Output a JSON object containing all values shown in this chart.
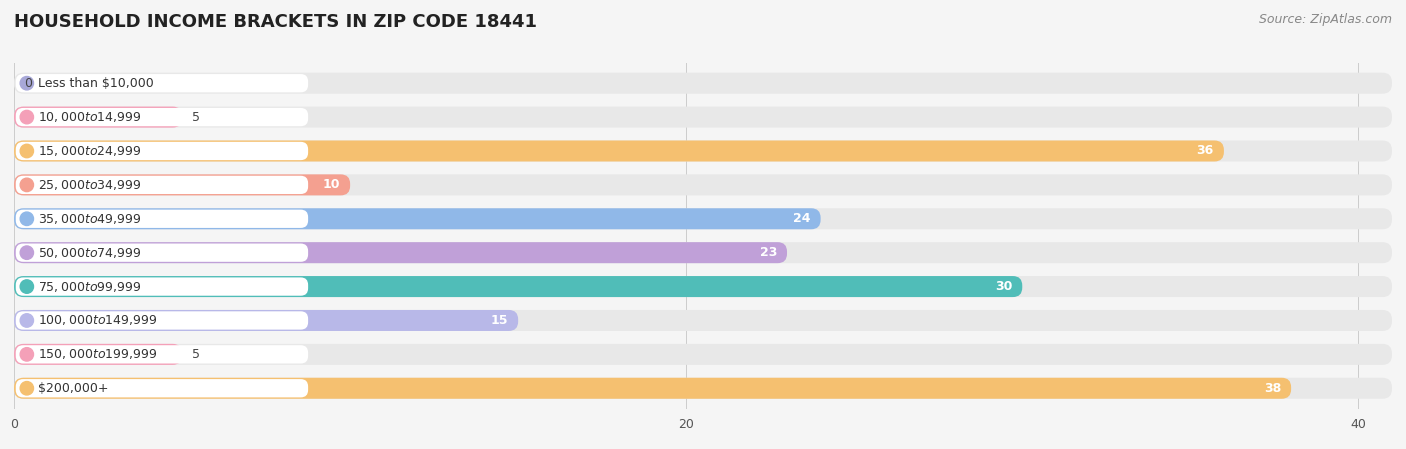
{
  "title": "HOUSEHOLD INCOME BRACKETS IN ZIP CODE 18441",
  "source": "Source: ZipAtlas.com",
  "categories": [
    "Less than $10,000",
    "$10,000 to $14,999",
    "$15,000 to $24,999",
    "$25,000 to $34,999",
    "$35,000 to $49,999",
    "$50,000 to $74,999",
    "$75,000 to $99,999",
    "$100,000 to $149,999",
    "$150,000 to $199,999",
    "$200,000+"
  ],
  "values": [
    0,
    5,
    36,
    10,
    24,
    23,
    30,
    15,
    5,
    38
  ],
  "bar_colors": [
    "#a8a8d8",
    "#f4a0b8",
    "#f5c070",
    "#f4a090",
    "#90b8e8",
    "#c0a0d8",
    "#50bdb8",
    "#b8b8e8",
    "#f4a0b8",
    "#f5c070"
  ],
  "xlim": [
    0,
    41
  ],
  "xticks": [
    0,
    20,
    40
  ],
  "background_color": "#f5f5f5",
  "bar_bg_color": "#e8e8e8",
  "label_bg_color": "#ffffff",
  "title_fontsize": 13,
  "label_fontsize": 9,
  "value_fontsize": 9,
  "source_fontsize": 9
}
